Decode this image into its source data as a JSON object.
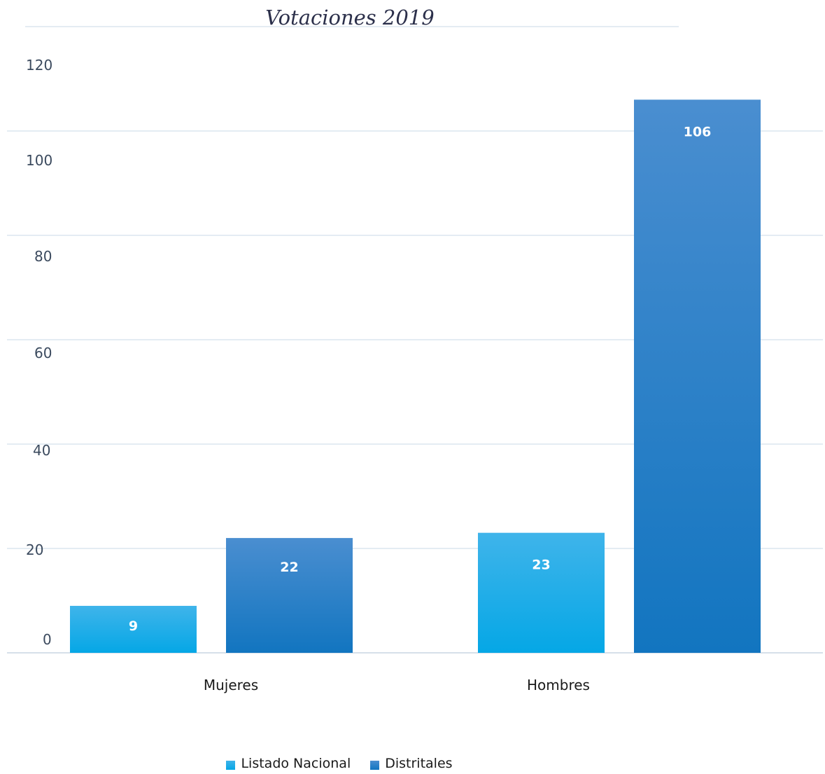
{
  "chart_data": {
    "type": "bar",
    "title": "Votaciones 2019",
    "categories": [
      "Mujeres",
      "Hombres"
    ],
    "series": [
      {
        "name": "Listado Nacional",
        "values": [
          9,
          23
        ],
        "color_top": "#3fb4ea",
        "color_bottom": "#05a7e6"
      },
      {
        "name": "Distritales",
        "values": [
          22,
          106
        ],
        "color_top": "#4a8ed0",
        "color_bottom": "#1275c0"
      }
    ],
    "yticks": [
      "0",
      "20",
      "40",
      "60",
      "80",
      "100",
      "120"
    ],
    "ylim": [
      0,
      120
    ],
    "grid": true,
    "legend": "bottom",
    "xlabel": "",
    "ylabel": ""
  }
}
